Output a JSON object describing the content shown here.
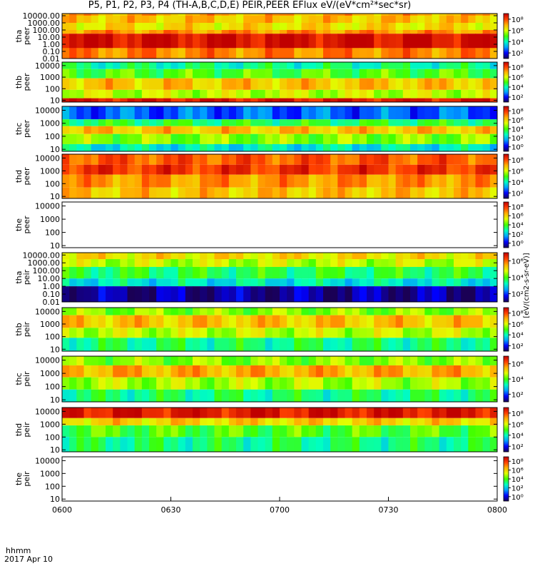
{
  "title": "P5, P1, P2, P3, P4 (TH-A,B,C,D,E) PEIR,PEER EFlux eV/(eV*cm²*sec*sr)",
  "colorbar_label": "[eV/(cm2-s-sr-eV)]",
  "x_axis": {
    "label_top": "hhmm",
    "label_bottom": "2017 Apr 10",
    "ticks": [
      "0600",
      "0630",
      "0700",
      "0730",
      "0800"
    ]
  },
  "colorbar_colors": [
    "#1a0055",
    "#0000ff",
    "#00a0ff",
    "#00ffc0",
    "#40ff00",
    "#e0ff00",
    "#ffb000",
    "#ff4000",
    "#c00000"
  ],
  "chart_data": [
    {
      "type": "heatmap",
      "probe": "tha",
      "species": "peer",
      "ylabel": "tha\npeer",
      "yscale": "log",
      "ylim": [
        0.01,
        20000
      ],
      "yticks": [
        "0.01",
        "0.10",
        "1.00",
        "10.00",
        "100.00",
        "1000.00",
        "10000.00"
      ],
      "cbticks": [
        "10²",
        "10⁴",
        "10⁶",
        "10⁸"
      ],
      "time_range": [
        "0600",
        "0800"
      ],
      "bands": [
        {
          "from": 10000,
          "to": 20000,
          "level": 0.75
        },
        {
          "from": 1000,
          "to": 10000,
          "level": 0.72
        },
        {
          "from": 100,
          "to": 1000,
          "level": 0.68
        },
        {
          "from": 30,
          "to": 100,
          "level": 0.78
        },
        {
          "from": 0.01,
          "to": 30,
          "level": 0.97
        },
        {
          "from": 0.01,
          "to": 0.3,
          "level": 0.8
        }
      ]
    },
    {
      "type": "heatmap",
      "probe": "thb",
      "species": "peer",
      "ylabel": "thb\npeer",
      "yscale": "log",
      "ylim": [
        7,
        20000
      ],
      "yticks": [
        "10",
        "100",
        "1000",
        "10000"
      ],
      "cbticks": [
        "10²",
        "10⁴",
        "10⁶",
        "10⁸"
      ],
      "time_range": [
        "0600",
        "0800"
      ],
      "bands": [
        {
          "from": 5000,
          "to": 20000,
          "level": 0.4
        },
        {
          "from": 800,
          "to": 5000,
          "level": 0.5
        },
        {
          "from": 80,
          "to": 800,
          "level": 0.72
        },
        {
          "from": 15,
          "to": 80,
          "level": 0.6
        },
        {
          "from": 7,
          "to": 15,
          "level": 0.95
        }
      ]
    },
    {
      "type": "heatmap",
      "probe": "thc",
      "species": "peer",
      "ylabel": "thc\npeer",
      "yscale": "log",
      "ylim": [
        7,
        20000
      ],
      "yticks": [
        "10",
        "100",
        "1000",
        "10000"
      ],
      "cbticks": [
        "10⁰",
        "10²",
        "10⁴",
        "10⁶",
        "10⁸"
      ],
      "time_range": [
        "0600",
        "0800"
      ],
      "bands": [
        {
          "from": 2000,
          "to": 20000,
          "level": 0.2
        },
        {
          "from": 600,
          "to": 2000,
          "level": 0.45
        },
        {
          "from": 150,
          "to": 600,
          "level": 0.72
        },
        {
          "from": 25,
          "to": 150,
          "level": 0.55
        },
        {
          "from": 7,
          "to": 25,
          "level": 0.35
        }
      ]
    },
    {
      "type": "heatmap",
      "probe": "thd",
      "species": "peer",
      "ylabel": "thd\npeer",
      "yscale": "log",
      "ylim": [
        7,
        20000
      ],
      "yticks": [
        "10",
        "100",
        "1000",
        "10000"
      ],
      "cbticks": [
        "10²",
        "10⁴",
        "10⁶",
        "10⁸"
      ],
      "time_range": [
        "0600",
        "0800"
      ],
      "bands": [
        {
          "from": 3000,
          "to": 20000,
          "level": 0.85
        },
        {
          "from": 500,
          "to": 3000,
          "level": 0.9
        },
        {
          "from": 50,
          "to": 500,
          "level": 0.78
        },
        {
          "from": 7,
          "to": 50,
          "level": 0.72
        }
      ]
    },
    {
      "type": "heatmap",
      "probe": "the",
      "species": "peer",
      "ylabel": "the\npeer",
      "yscale": "log",
      "ylim": [
        7,
        20000
      ],
      "yticks": [
        "10",
        "100",
        "1000",
        "10000"
      ],
      "cbticks": [
        "10⁰",
        "10²",
        "10⁴",
        "10⁶",
        "10⁸"
      ],
      "time_range": [
        "0600",
        "0800"
      ],
      "bands": []
    },
    {
      "type": "heatmap",
      "probe": "tha",
      "species": "peir",
      "ylabel": "tha\npeir",
      "yscale": "log",
      "ylim": [
        0.01,
        20000
      ],
      "yticks": [
        "0.01",
        "0.10",
        "1.00",
        "10.00",
        "100.00",
        "1000.00",
        "10000.00"
      ],
      "cbticks": [
        "10²",
        "10⁴",
        "10⁶"
      ],
      "time_range": [
        "0600",
        "0800"
      ],
      "bands": [
        {
          "from": 3000,
          "to": 20000,
          "level": 0.68
        },
        {
          "from": 300,
          "to": 3000,
          "level": 0.6
        },
        {
          "from": 10,
          "to": 300,
          "level": 0.45
        },
        {
          "from": 1,
          "to": 10,
          "level": 0.35
        },
        {
          "from": 0.01,
          "to": 1,
          "level": 0.05
        }
      ]
    },
    {
      "type": "heatmap",
      "probe": "thb",
      "species": "peir",
      "ylabel": "thb\npeir",
      "yscale": "log",
      "ylim": [
        7,
        20000
      ],
      "yticks": [
        "10",
        "100",
        "1000",
        "10000"
      ],
      "cbticks": [
        "10²",
        "10⁴",
        "10⁶",
        "10⁸"
      ],
      "time_range": [
        "0600",
        "0800"
      ],
      "bands": [
        {
          "from": 5000,
          "to": 20000,
          "level": 0.55
        },
        {
          "from": 500,
          "to": 5000,
          "level": 0.72
        },
        {
          "from": 80,
          "to": 500,
          "level": 0.6
        },
        {
          "from": 7,
          "to": 80,
          "level": 0.42
        }
      ]
    },
    {
      "type": "heatmap",
      "probe": "thc",
      "species": "peir",
      "ylabel": "thc\npeir",
      "yscale": "log",
      "ylim": [
        7,
        20000
      ],
      "yticks": [
        "10",
        "100",
        "1000",
        "10000"
      ],
      "cbticks": [
        "10²",
        "10⁴",
        "10⁶"
      ],
      "time_range": [
        "0600",
        "0800"
      ],
      "bands": [
        {
          "from": 4000,
          "to": 20000,
          "level": 0.55
        },
        {
          "from": 500,
          "to": 4000,
          "level": 0.75
        },
        {
          "from": 60,
          "to": 500,
          "level": 0.58
        },
        {
          "from": 7,
          "to": 60,
          "level": 0.42
        }
      ]
    },
    {
      "type": "heatmap",
      "probe": "thd",
      "species": "peir",
      "ylabel": "thd\npeir",
      "yscale": "log",
      "ylim": [
        7,
        20000
      ],
      "yticks": [
        "10",
        "100",
        "1000",
        "10000"
      ],
      "cbticks": [
        "10²",
        "10⁴",
        "10⁶",
        "10⁸"
      ],
      "time_range": [
        "0600",
        "0800"
      ],
      "bands": [
        {
          "from": 3000,
          "to": 20000,
          "level": 0.95
        },
        {
          "from": 800,
          "to": 3000,
          "level": 0.7
        },
        {
          "from": 100,
          "to": 800,
          "level": 0.5
        },
        {
          "from": 7,
          "to": 100,
          "level": 0.42
        }
      ]
    },
    {
      "type": "heatmap",
      "probe": "the",
      "species": "peir",
      "ylabel": "the\npeir",
      "yscale": "log",
      "ylim": [
        7,
        20000
      ],
      "yticks": [
        "10",
        "100",
        "1000",
        "10000"
      ],
      "cbticks": [
        "10⁰",
        "10²",
        "10⁴",
        "10⁶",
        "10⁸"
      ],
      "time_range": [
        "0600",
        "0800"
      ],
      "bands": []
    }
  ]
}
